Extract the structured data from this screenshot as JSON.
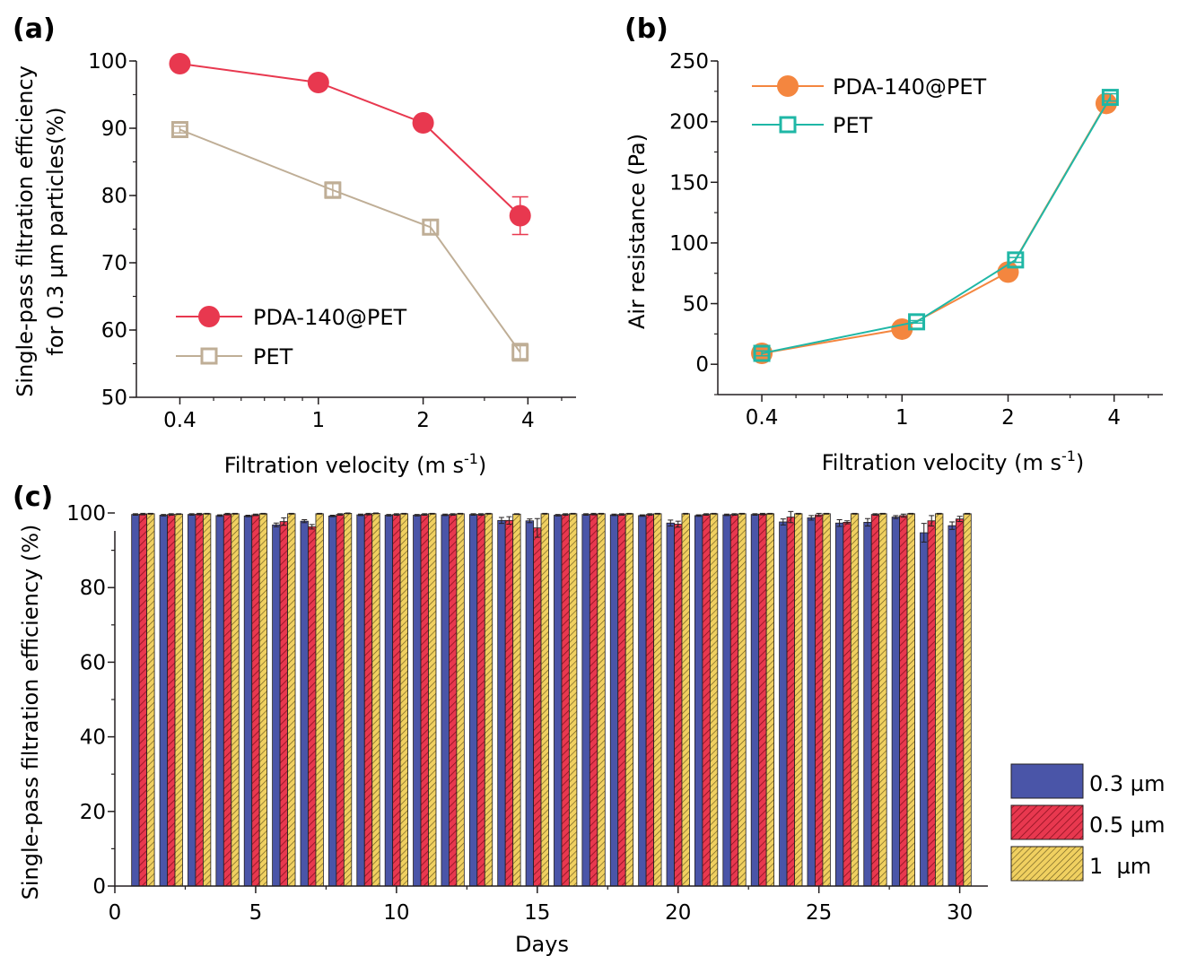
{
  "colors": {
    "axis": "#231f20",
    "pda": "#e8384f",
    "pet_a": "#bfae96",
    "pda_b": "#f4863f",
    "pet_b": "#1fb7a6",
    "bar_03": "#4a55a8",
    "bar_05": "#e8384f",
    "bar_1": "#f0d060"
  },
  "chart_data": [
    {
      "id": "a",
      "panel_label": "(a)",
      "type": "line",
      "xscale": "log",
      "x_tick_labels": [
        "0.4",
        "1",
        "2",
        "4"
      ],
      "ylabel_line1": "Single-pass filtration efficiency",
      "ylabel_line2": "for 0.3 µm particles(%)",
      "xlabel": "Filtration velocity (m s",
      "xlabel_sup": "-1",
      "xlabel_end": ")",
      "ylim": [
        50,
        100
      ],
      "y_ticks": [
        "50",
        "60",
        "70",
        "80",
        "90",
        "100"
      ],
      "legend_position": "lower-left",
      "series": [
        {
          "name": "PDA-140@PET",
          "marker": "filled-circle",
          "x": [
            0.4,
            1.0,
            2.0,
            3.8
          ],
          "y": [
            99.6,
            96.8,
            90.8,
            77.0
          ],
          "err": [
            0.3,
            0.5,
            0.8,
            2.8
          ]
        },
        {
          "name": "PET",
          "marker": "open-square",
          "x": [
            0.4,
            1.1,
            2.1,
            3.8
          ],
          "y": [
            89.8,
            80.8,
            75.3,
            56.7
          ],
          "err": [
            0.5,
            1.2,
            1.0,
            1.3
          ]
        }
      ]
    },
    {
      "id": "b",
      "panel_label": "(b)",
      "type": "line",
      "xscale": "log",
      "x_tick_labels": [
        "0.4",
        "1",
        "2",
        "4"
      ],
      "ylabel": "Air resistance (Pa)",
      "xlabel": "Filtration velocity (m s",
      "xlabel_sup": "-1",
      "xlabel_end": ")",
      "ylim": [
        -25,
        250
      ],
      "y_ticks": [
        "0",
        "50",
        "100",
        "150",
        "200",
        "250"
      ],
      "legend_position": "top-left",
      "series": [
        {
          "name": "PDA-140@PET",
          "marker": "filled-circle",
          "x": [
            0.4,
            1.0,
            2.0,
            3.8
          ],
          "y": [
            9,
            29,
            76,
            215
          ],
          "err": [
            2,
            1,
            2,
            3
          ]
        },
        {
          "name": "PET",
          "marker": "open-square",
          "x": [
            0.4,
            1.1,
            2.1,
            3.9
          ],
          "y": [
            9,
            35,
            86,
            220
          ],
          "err": [
            2,
            1,
            2,
            3
          ]
        }
      ]
    },
    {
      "id": "c",
      "panel_label": "(c)",
      "type": "bar",
      "xlabel": "Days",
      "ylabel": "Single-pass filtration efficiency (%)",
      "xlim": [
        0,
        31
      ],
      "ylim": [
        0,
        100
      ],
      "x_ticks": [
        "0",
        "5",
        "10",
        "15",
        "20",
        "25",
        "30"
      ],
      "y_ticks": [
        "0",
        "20",
        "40",
        "60",
        "80",
        "100"
      ],
      "legend_position": "lower-right",
      "categories": [
        1,
        2,
        3,
        4,
        5,
        6,
        7,
        8,
        9,
        10,
        11,
        12,
        13,
        14,
        15,
        16,
        17,
        18,
        19,
        20,
        21,
        22,
        23,
        24,
        25,
        26,
        27,
        28,
        29,
        30
      ],
      "series": [
        {
          "name": "0.3 µm",
          "pattern": "solid",
          "values": [
            99.6,
            99.4,
            99.6,
            99.3,
            99.2,
            96.8,
            97.8,
            99.2,
            99.5,
            99.4,
            99.4,
            99.5,
            99.6,
            98.0,
            97.9,
            99.4,
            99.6,
            99.5,
            99.3,
            97.3,
            99.3,
            99.5,
            99.6,
            97.6,
            98.7,
            97.3,
            97.5,
            98.9,
            94.7,
            96.6
          ],
          "err": [
            0.2,
            0.2,
            0.2,
            0.2,
            0.2,
            0.5,
            0.4,
            0.2,
            0.2,
            0.2,
            0.2,
            0.2,
            0.2,
            0.8,
            0.5,
            0.2,
            0.2,
            0.2,
            0.2,
            0.8,
            0.2,
            0.2,
            0.2,
            0.8,
            0.6,
            0.9,
            1.0,
            0.4,
            2.5,
            1.0
          ]
        },
        {
          "name": "0.5 µm",
          "pattern": "hatched",
          "values": [
            99.7,
            99.6,
            99.7,
            99.7,
            99.5,
            97.7,
            96.3,
            99.6,
            99.7,
            99.6,
            99.6,
            99.6,
            99.6,
            98.0,
            96.0,
            99.6,
            99.7,
            99.6,
            99.6,
            97.0,
            99.6,
            99.6,
            99.7,
            98.9,
            99.5,
            97.5,
            99.6,
            99.3,
            97.9,
            98.4
          ],
          "err": [
            0.2,
            0.2,
            0.2,
            0.2,
            0.2,
            1.0,
            0.6,
            0.2,
            0.2,
            0.2,
            0.2,
            0.2,
            0.2,
            1.0,
            2.5,
            0.2,
            0.2,
            0.2,
            0.2,
            0.8,
            0.2,
            0.2,
            0.2,
            1.5,
            0.4,
            0.4,
            0.2,
            0.4,
            1.4,
            0.7
          ]
        },
        {
          "name": "1  µm",
          "pattern": "yellow-hatched",
          "values": [
            99.8,
            99.7,
            99.8,
            99.8,
            99.8,
            99.8,
            99.8,
            99.9,
            99.9,
            99.8,
            99.8,
            99.8,
            99.8,
            99.7,
            99.8,
            99.8,
            99.8,
            99.8,
            99.8,
            99.8,
            99.8,
            99.8,
            99.8,
            99.8,
            99.8,
            99.8,
            99.8,
            99.8,
            99.8,
            99.8
          ],
          "err": [
            0.1,
            0.1,
            0.1,
            0.1,
            0.1,
            0.1,
            0.1,
            0.1,
            0.1,
            0.1,
            0.1,
            0.1,
            0.1,
            0.1,
            0.1,
            0.1,
            0.1,
            0.1,
            0.1,
            0.1,
            0.1,
            0.1,
            0.1,
            0.1,
            0.1,
            0.1,
            0.1,
            0.1,
            0.1,
            0.1
          ]
        }
      ]
    }
  ]
}
